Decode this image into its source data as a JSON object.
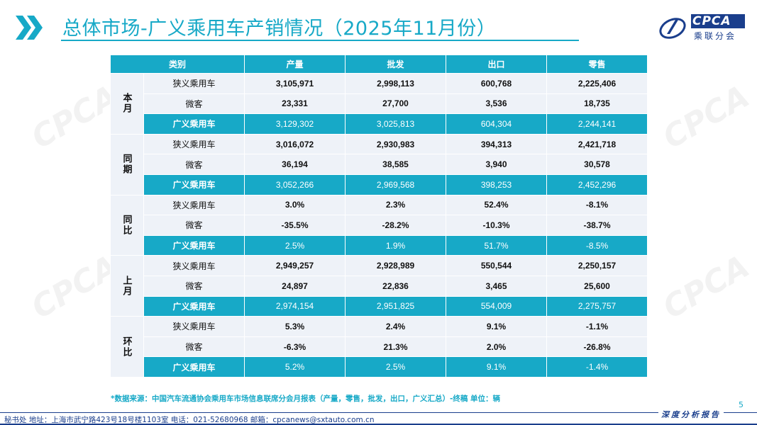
{
  "header": {
    "title": "总体市场-广义乘用车产销情况（2025年11月份）",
    "logo_en": "CPCA",
    "logo_cn": "乘联分会"
  },
  "table": {
    "columns": [
      "类别",
      "产量",
      "批发",
      "出口",
      "零售"
    ],
    "groups": [
      {
        "label": "本月",
        "rows": [
          {
            "name": "狭义乘用车",
            "values": [
              "3,105,971",
              "2,998,113",
              "600,768",
              "2,225,406"
            ]
          },
          {
            "name": "微客",
            "values": [
              "23,331",
              "27,700",
              "3,536",
              "18,735"
            ]
          },
          {
            "name": "广义乘用车",
            "values": [
              "3,129,302",
              "3,025,813",
              "604,304",
              "2,244,141"
            ]
          }
        ]
      },
      {
        "label": "同期",
        "rows": [
          {
            "name": "狭义乘用车",
            "values": [
              "3,016,072",
              "2,930,983",
              "394,313",
              "2,421,718"
            ]
          },
          {
            "name": "微客",
            "values": [
              "36,194",
              "38,585",
              "3,940",
              "30,578"
            ]
          },
          {
            "name": "广义乘用车",
            "values": [
              "3,052,266",
              "2,969,568",
              "398,253",
              "2,452,296"
            ]
          }
        ]
      },
      {
        "label": "同比",
        "rows": [
          {
            "name": "狭义乘用车",
            "values": [
              "3.0%",
              "2.3%",
              "52.4%",
              "-8.1%"
            ]
          },
          {
            "name": "微客",
            "values": [
              "-35.5%",
              "-28.2%",
              "-10.3%",
              "-38.7%"
            ]
          },
          {
            "name": "广义乘用车",
            "values": [
              "2.5%",
              "1.9%",
              "51.7%",
              "-8.5%"
            ]
          }
        ]
      },
      {
        "label": "上月",
        "rows": [
          {
            "name": "狭义乘用车",
            "values": [
              "2,949,257",
              "2,928,989",
              "550,544",
              "2,250,157"
            ]
          },
          {
            "name": "微客",
            "values": [
              "24,897",
              "22,836",
              "3,465",
              "25,600"
            ]
          },
          {
            "name": "广义乘用车",
            "values": [
              "2,974,154",
              "2,951,825",
              "554,009",
              "2,275,757"
            ]
          }
        ]
      },
      {
        "label": "环比",
        "rows": [
          {
            "name": "狭义乘用车",
            "values": [
              "5.3%",
              "2.4%",
              "9.1%",
              "-1.1%"
            ]
          },
          {
            "name": "微客",
            "values": [
              "-6.3%",
              "21.3%",
              "2.0%",
              "-26.8%"
            ]
          },
          {
            "name": "广义乘用车",
            "values": [
              "5.2%",
              "2.5%",
              "9.1%",
              "-1.4%"
            ]
          }
        ]
      }
    ]
  },
  "note": "*数据来源：中国汽车流通协会乘用车市场信息联席分会月报表（产量，零售，批发，出口，广义汇总）-终稿    单位：辆",
  "page_number": "5",
  "footer": {
    "info": "秘书处   地址：上海市武宁路423号18号楼1103室   电话：021-52680968   邮箱：cpcanews@sxtauto.com.cn",
    "brand": "深度分析报告"
  },
  "colors": {
    "accent": "#17a9c7",
    "row_light": "#eef2f8",
    "brand_blue": "#1a3e8c"
  },
  "icons": [
    "double-chevron-icon",
    "cpca-logo-icon"
  ]
}
